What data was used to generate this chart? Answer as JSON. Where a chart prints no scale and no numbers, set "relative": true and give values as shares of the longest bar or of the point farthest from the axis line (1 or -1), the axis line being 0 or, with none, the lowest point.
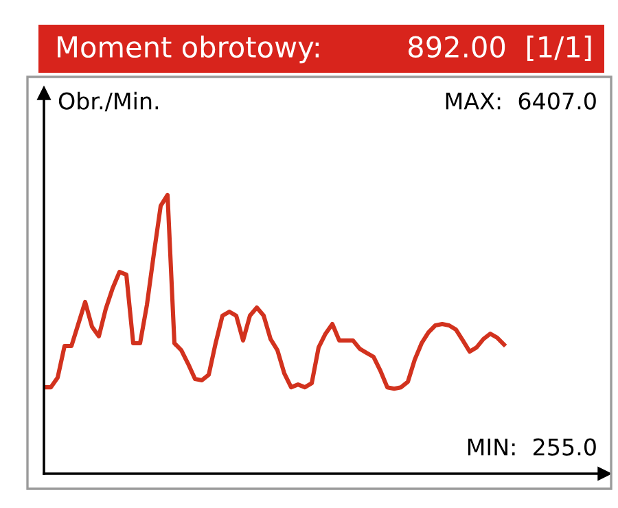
{
  "chart_data": {
    "type": "line",
    "title": "Moment obrotowy:",
    "subtitle": "892.00  [1/1]",
    "ylabel": "Obr./Min.",
    "relative": true,
    "annotations": [
      "MAX:  6407.0",
      "MIN:  255.0"
    ],
    "categories": [
      null,
      null,
      null,
      null,
      null,
      null,
      null,
      null,
      null,
      null,
      null,
      null,
      null,
      null,
      null,
      null,
      null,
      null,
      null,
      null,
      null,
      null,
      null,
      null,
      null,
      null,
      null,
      null,
      null,
      null,
      null,
      null,
      null,
      null,
      null,
      null,
      null,
      null,
      null,
      null,
      null,
      null,
      null,
      null,
      null,
      null,
      null,
      null,
      null,
      null,
      null,
      null,
      null,
      null,
      null,
      null,
      null,
      null,
      null,
      null,
      null,
      null,
      null,
      null,
      null,
      null,
      null,
      null
    ],
    "series": [
      {
        "color": "#d2321e",
        "values": [
          0.31,
          0.31,
          0.345,
          0.458,
          0.458,
          0.537,
          0.616,
          0.527,
          0.493,
          0.591,
          0.665,
          0.724,
          0.714,
          0.468,
          0.468,
          0.606,
          0.788,
          0.961,
          1.0,
          0.468,
          0.443,
          0.394,
          0.34,
          0.335,
          0.355,
          0.468,
          0.567,
          0.581,
          0.567,
          0.478,
          0.567,
          0.596,
          0.567,
          0.483,
          0.443,
          0.36,
          0.31,
          0.32,
          0.31,
          0.325,
          0.453,
          0.502,
          0.537,
          0.478,
          0.478,
          0.478,
          0.448,
          0.433,
          0.419,
          0.369,
          0.31,
          0.305,
          0.31,
          0.33,
          0.409,
          0.468,
          0.507,
          0.532,
          0.537,
          0.532,
          0.517,
          0.478,
          0.438,
          0.453,
          0.483,
          0.502,
          0.488,
          0.463
        ]
      }
    ],
    "marker": "none",
    "line_style": "solid",
    "grid": false,
    "legend": false
  }
}
